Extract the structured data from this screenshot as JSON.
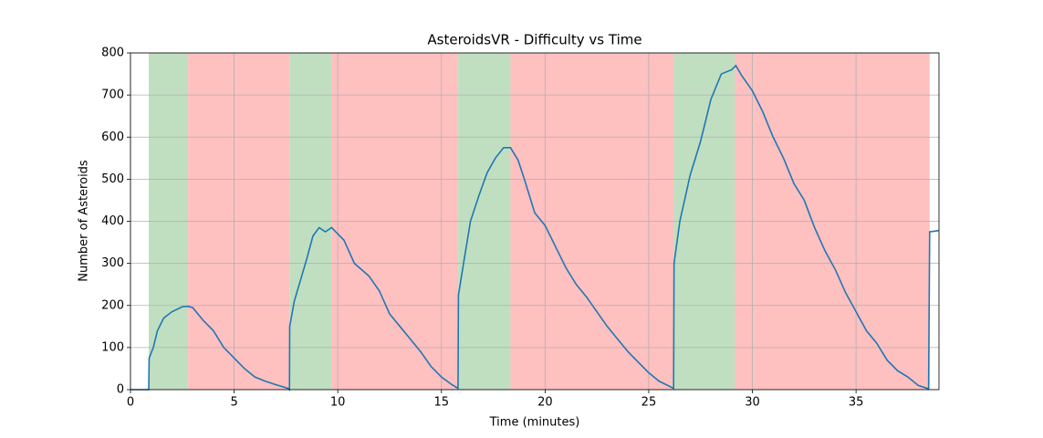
{
  "chart_data": {
    "type": "line",
    "title": "AsteroidsVR - Difficulty vs Time",
    "xlabel": "Time (minutes)",
    "ylabel": "Number of Asteroids",
    "xlim": [
      0,
      39
    ],
    "ylim": [
      0,
      800
    ],
    "xticks": [
      0,
      5,
      10,
      15,
      20,
      25,
      30,
      35
    ],
    "yticks": [
      0,
      100,
      200,
      300,
      400,
      500,
      600,
      700,
      800
    ],
    "grid": true,
    "spans": [
      {
        "start": 0.88,
        "end": 2.78,
        "color": "#c0dfc0"
      },
      {
        "start": 2.78,
        "end": 7.67,
        "color": "#ffc0c0"
      },
      {
        "start": 7.67,
        "end": 9.69,
        "color": "#c0dfc0"
      },
      {
        "start": 9.69,
        "end": 15.81,
        "color": "#ffc0c0"
      },
      {
        "start": 15.81,
        "end": 18.33,
        "color": "#c0dfc0"
      },
      {
        "start": 18.33,
        "end": 26.21,
        "color": "#ffc0c0"
      },
      {
        "start": 26.21,
        "end": 29.16,
        "color": "#c0dfc0"
      },
      {
        "start": 29.16,
        "end": 38.55,
        "color": "#ffc0c0"
      }
    ],
    "x": [
      0,
      0.88,
      0.9,
      1.1,
      1.3,
      1.6,
      2.0,
      2.5,
      2.78,
      3.0,
      3.5,
      4.0,
      4.5,
      5.0,
      5.5,
      6.0,
      6.5,
      7.0,
      7.6,
      7.67,
      7.68,
      7.9,
      8.2,
      8.5,
      8.8,
      9.1,
      9.4,
      9.7,
      10.0,
      10.3,
      10.8,
      11.5,
      12.0,
      12.5,
      13.0,
      13.5,
      14.0,
      14.5,
      15.0,
      15.5,
      15.8,
      15.82,
      16.1,
      16.4,
      16.8,
      17.2,
      17.6,
      18.0,
      18.33,
      18.7,
      19.0,
      19.5,
      20.0,
      20.5,
      21.0,
      21.5,
      22.0,
      22.5,
      23.0,
      23.5,
      24.0,
      24.5,
      25.0,
      25.5,
      26.2,
      26.22,
      26.5,
      27.0,
      27.5,
      28.0,
      28.5,
      29.0,
      29.2,
      29.5,
      30.0,
      30.5,
      31.0,
      31.5,
      32.0,
      32.5,
      33.0,
      33.5,
      34.0,
      34.5,
      35.0,
      35.5,
      36.0,
      36.5,
      37.0,
      37.5,
      38.0,
      38.5,
      38.55,
      39.0
    ],
    "series": [
      {
        "name": "Asteroids",
        "color": "#1f77b4",
        "values": [
          0,
          0,
          75,
          100,
          140,
          170,
          185,
          197,
          198,
          195,
          165,
          140,
          100,
          75,
          50,
          30,
          20,
          12,
          3,
          0,
          150,
          210,
          260,
          310,
          365,
          385,
          375,
          385,
          370,
          355,
          300,
          270,
          235,
          180,
          150,
          120,
          90,
          55,
          30,
          12,
          3,
          225,
          310,
          400,
          460,
          515,
          550,
          575,
          575,
          545,
          500,
          420,
          390,
          340,
          290,
          250,
          220,
          185,
          150,
          120,
          90,
          65,
          40,
          20,
          3,
          300,
          400,
          510,
          590,
          690,
          750,
          760,
          770,
          745,
          710,
          660,
          600,
          550,
          490,
          450,
          385,
          330,
          285,
          230,
          185,
          140,
          110,
          70,
          45,
          30,
          10,
          2,
          375,
          378
        ]
      }
    ]
  }
}
